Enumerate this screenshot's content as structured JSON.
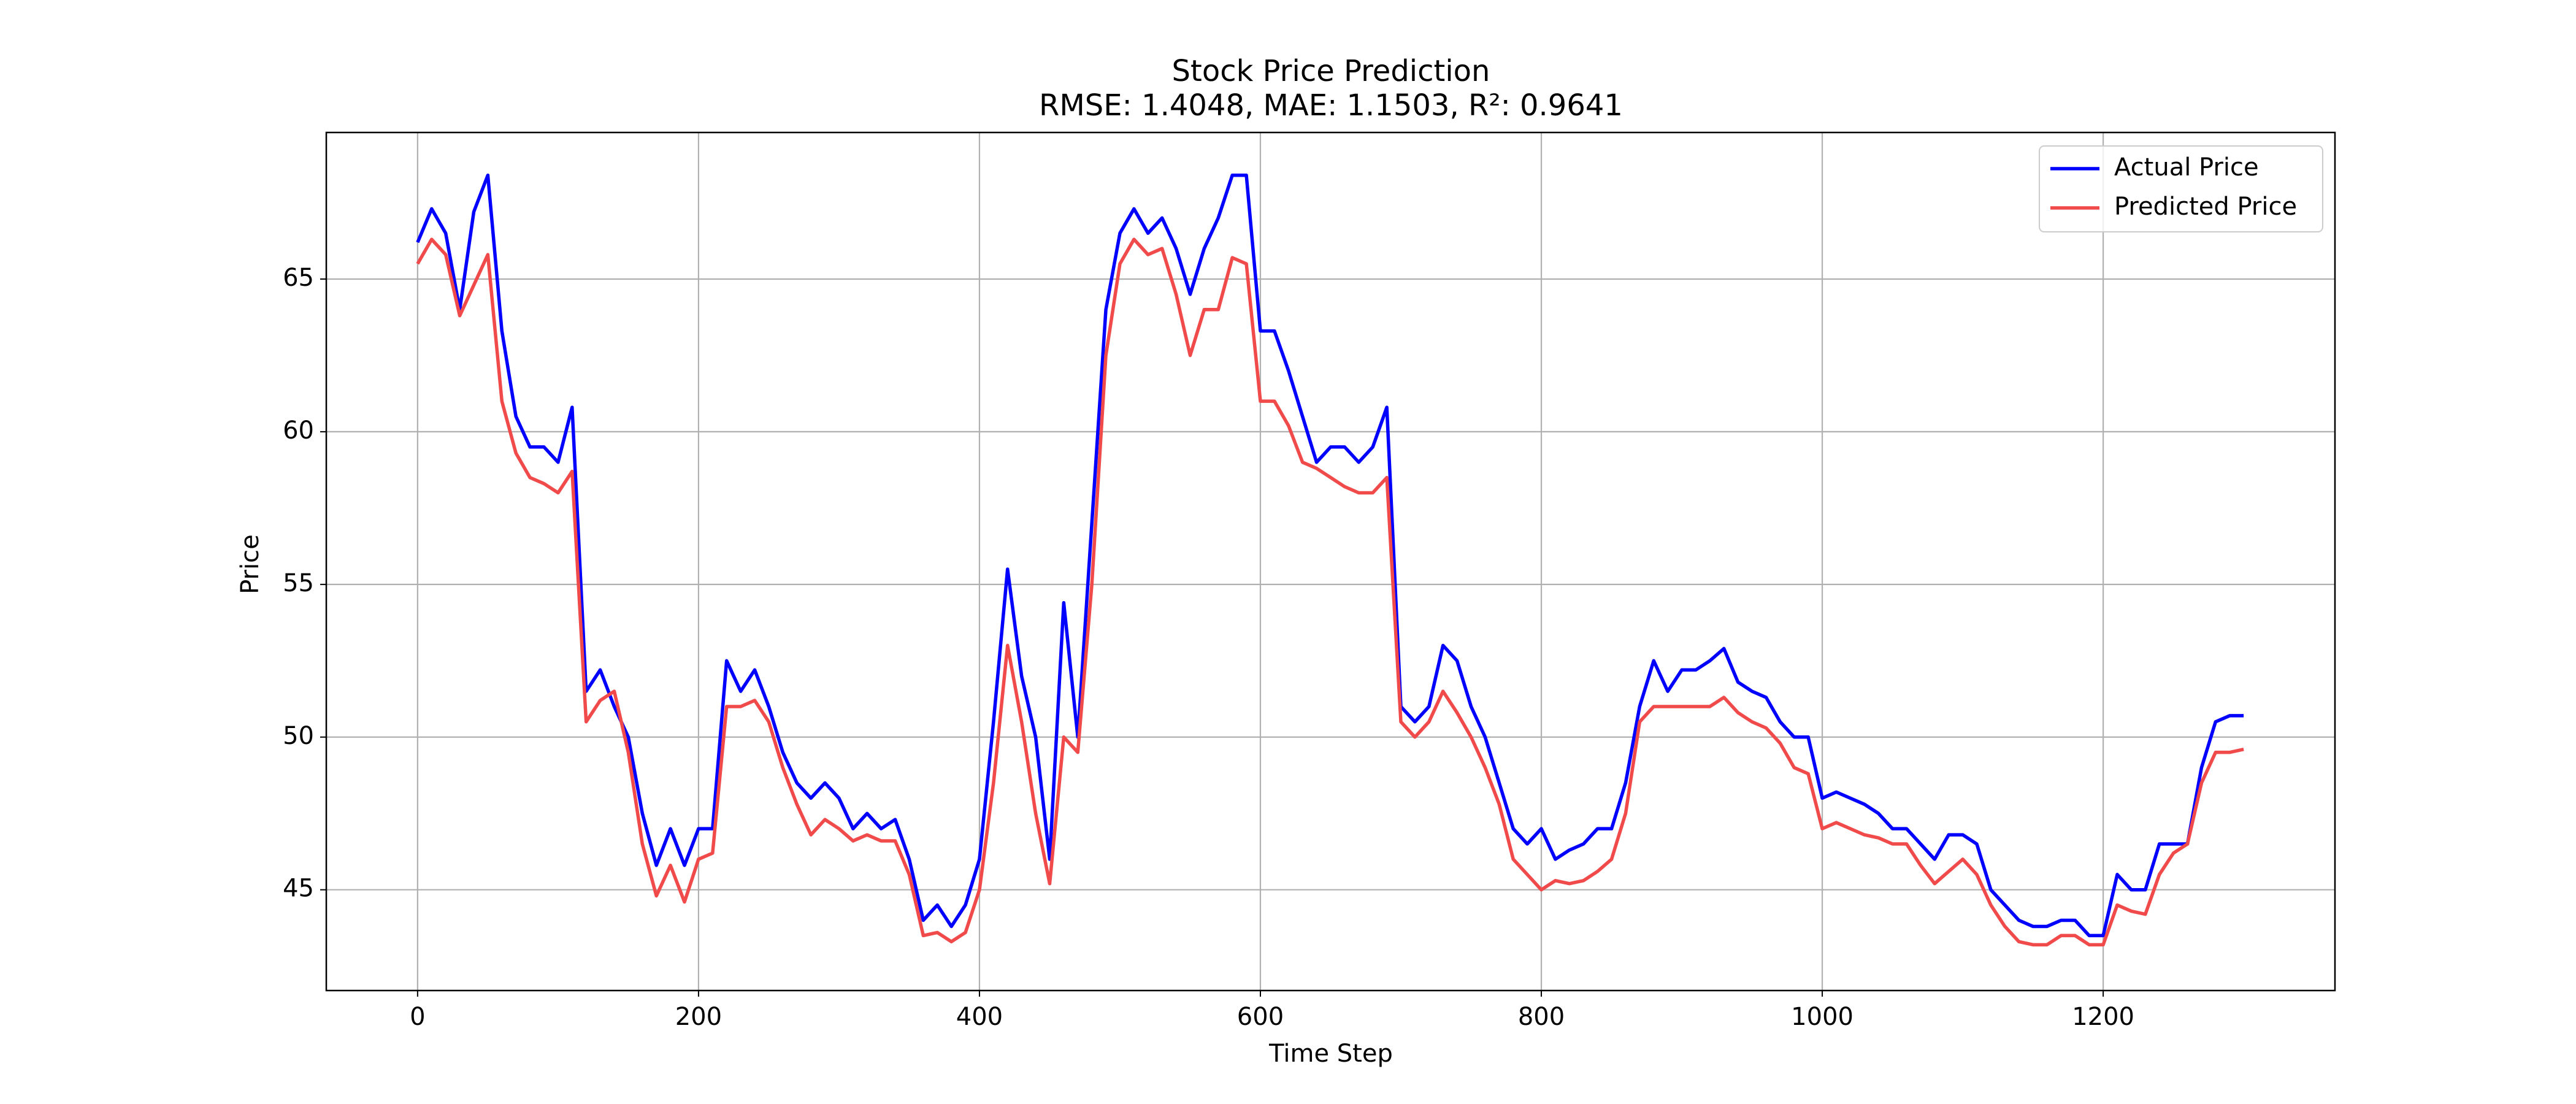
{
  "chart_data": {
    "type": "line",
    "title": "Stock Price Prediction",
    "subtitle": "RMSE: 1.4048, MAE: 1.1503, R²: 0.9641",
    "x_label": "Time Step",
    "y_label": "Price",
    "x": [
      0,
      10,
      20,
      30,
      40,
      50,
      60,
      70,
      80,
      90,
      100,
      110,
      120,
      130,
      140,
      150,
      160,
      170,
      180,
      190,
      200,
      210,
      220,
      230,
      240,
      250,
      260,
      270,
      280,
      290,
      300,
      310,
      320,
      330,
      340,
      350,
      360,
      370,
      380,
      390,
      400,
      410,
      420,
      430,
      440,
      450,
      460,
      470,
      480,
      490,
      500,
      510,
      520,
      530,
      540,
      550,
      560,
      570,
      580,
      590,
      600,
      610,
      620,
      630,
      640,
      650,
      660,
      670,
      680,
      690,
      700,
      710,
      720,
      730,
      740,
      750,
      760,
      770,
      780,
      790,
      800,
      810,
      820,
      830,
      840,
      850,
      860,
      870,
      880,
      890,
      900,
      910,
      920,
      930,
      940,
      950,
      960,
      970,
      980,
      990,
      1000,
      1010,
      1020,
      1030,
      1040,
      1050,
      1060,
      1070,
      1080,
      1090,
      1100,
      1110,
      1120,
      1130,
      1140,
      1150,
      1160,
      1170,
      1180,
      1190,
      1200,
      1210,
      1220,
      1230,
      1240,
      1250,
      1260,
      1270,
      1280,
      1290,
      1300
    ],
    "series": [
      {
        "name": "Actual Price",
        "color": "#0000ff",
        "values": [
          66.2,
          67.3,
          66.5,
          64.0,
          67.2,
          68.4,
          63.3,
          60.5,
          59.5,
          59.5,
          59.0,
          60.8,
          51.5,
          52.2,
          51.0,
          50.0,
          47.5,
          45.8,
          47.0,
          45.8,
          47.0,
          47.0,
          52.5,
          51.5,
          52.2,
          51.0,
          49.5,
          48.5,
          48.0,
          48.5,
          48.0,
          47.0,
          47.5,
          47.0,
          47.3,
          46.0,
          44.0,
          44.5,
          43.8,
          44.5,
          46.0,
          50.5,
          55.5,
          52.0,
          50.0,
          46.0,
          54.4,
          50.0,
          57.0,
          64.0,
          66.5,
          67.3,
          66.5,
          67.0,
          66.0,
          64.5,
          66.0,
          67.0,
          68.4,
          68.4,
          63.3,
          63.3,
          62.0,
          60.5,
          59.0,
          59.5,
          59.5,
          59.0,
          59.5,
          60.8,
          51.0,
          50.5,
          51.0,
          53.0,
          52.5,
          51.0,
          50.0,
          48.5,
          47.0,
          46.5,
          47.0,
          46.0,
          46.3,
          46.5,
          47.0,
          47.0,
          48.5,
          51.0,
          52.5,
          51.5,
          52.2,
          52.2,
          52.5,
          52.9,
          51.8,
          51.5,
          51.3,
          50.5,
          50.0,
          50.0,
          48.0,
          48.2,
          48.0,
          47.8,
          47.5,
          47.0,
          47.0,
          46.5,
          46.0,
          46.8,
          46.8,
          46.5,
          45.0,
          44.5,
          44.0,
          43.8,
          43.8,
          44.0,
          44.0,
          43.5,
          43.5,
          45.5,
          45.0,
          45.0,
          46.5,
          46.5,
          46.5,
          49.0,
          50.5,
          50.7,
          50.7
        ]
      },
      {
        "name": "Predicted Price",
        "color": "#f04a4a",
        "values": [
          65.5,
          66.3,
          65.8,
          63.8,
          64.8,
          65.8,
          61.0,
          59.3,
          58.5,
          58.3,
          58.0,
          58.7,
          50.5,
          51.2,
          51.5,
          49.5,
          46.5,
          44.8,
          45.8,
          44.6,
          46.0,
          46.2,
          51.0,
          51.0,
          51.2,
          50.5,
          49.0,
          47.8,
          46.8,
          47.3,
          47.0,
          46.6,
          46.8,
          46.6,
          46.6,
          45.5,
          43.5,
          43.6,
          43.3,
          43.6,
          45.0,
          48.5,
          53.0,
          50.5,
          47.5,
          45.2,
          50.0,
          49.5,
          55.0,
          62.5,
          65.5,
          66.3,
          65.8,
          66.0,
          64.5,
          62.5,
          64.0,
          64.0,
          65.7,
          65.5,
          61.0,
          61.0,
          60.2,
          59.0,
          58.8,
          58.5,
          58.2,
          58.0,
          58.0,
          58.5,
          50.5,
          50.0,
          50.5,
          51.5,
          50.8,
          50.0,
          49.0,
          47.8,
          46.0,
          45.5,
          45.0,
          45.3,
          45.2,
          45.3,
          45.6,
          46.0,
          47.5,
          50.5,
          51.0,
          51.0,
          51.0,
          51.0,
          51.0,
          51.3,
          50.8,
          50.5,
          50.3,
          49.8,
          49.0,
          48.8,
          47.0,
          47.2,
          47.0,
          46.8,
          46.7,
          46.5,
          46.5,
          45.8,
          45.2,
          45.6,
          46.0,
          45.5,
          44.5,
          43.8,
          43.3,
          43.2,
          43.2,
          43.5,
          43.5,
          43.2,
          43.2,
          44.5,
          44.3,
          44.2,
          45.5,
          46.2,
          46.5,
          48.5,
          49.5,
          49.5,
          49.6
        ]
      }
    ],
    "xlim": [
      -65,
      1365
    ],
    "ylim": [
      41.7,
      69.8
    ],
    "xticks": [
      0,
      200,
      400,
      600,
      800,
      1000,
      1200
    ],
    "yticks": [
      45,
      50,
      55,
      60,
      65
    ],
    "grid": true,
    "legend": "upper right"
  }
}
